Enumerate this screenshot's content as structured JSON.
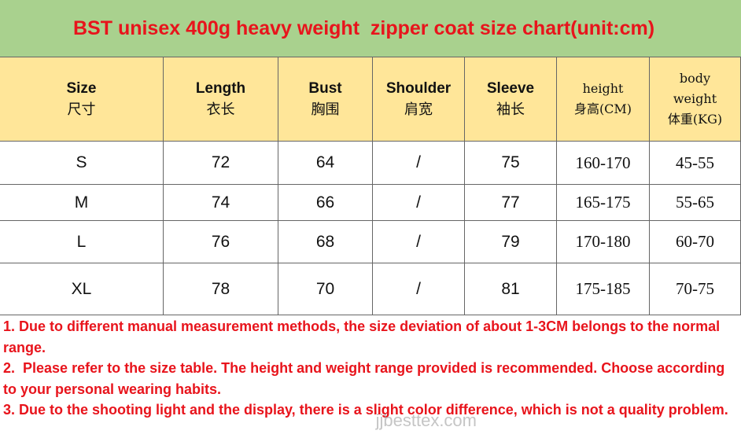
{
  "title": "BST unisex 400g heavy weight  zipper coat size chart(unit:cm)",
  "table": {
    "header": [
      [
        "Size",
        "尺寸"
      ],
      [
        "Length",
        "衣长"
      ],
      [
        "Bust",
        "胸围"
      ],
      [
        "Shoulder",
        "肩宽"
      ],
      [
        "Sleeve",
        "袖长"
      ],
      [
        "height",
        "身高(CM)"
      ],
      [
        "body",
        "weight",
        "体重(KG)"
      ]
    ],
    "rows": [
      [
        "S",
        72,
        64,
        "/",
        75,
        "160-170",
        "45-55"
      ],
      [
        "M",
        74,
        66,
        "/",
        77,
        "165-175",
        "55-65"
      ],
      [
        "L",
        76,
        68,
        "/",
        79,
        "170-180",
        "60-70"
      ],
      [
        "XL",
        78,
        70,
        "/",
        81,
        "175-185",
        "70-75"
      ]
    ]
  },
  "notes": [
    "1. Due to different manual measurement methods, the size deviation of about 1-3CM belongs to the normal range.",
    "2.  Please refer to the size table. The height and weight range provided is recommended. Choose according to your personal wearing habits.",
    "3. Due to the shooting light and the display, there is a slight color difference, which is not a quality problem."
  ],
  "watermark": "jjbesttex.com"
}
